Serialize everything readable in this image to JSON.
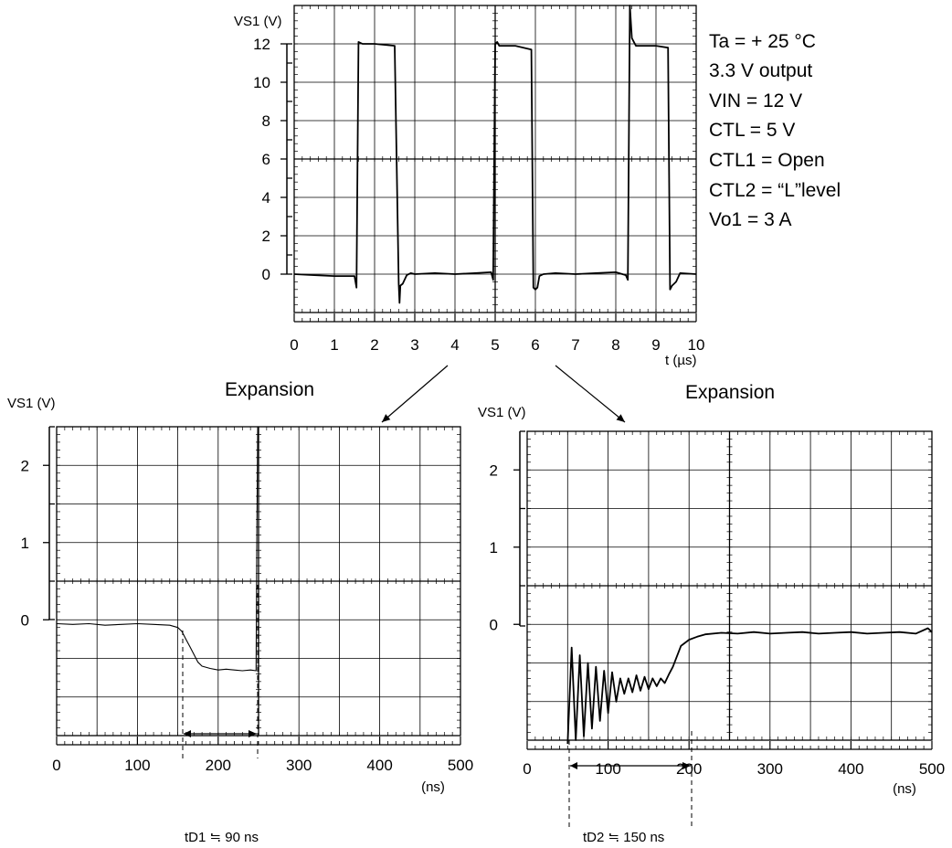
{
  "top_conditions": [
    "Ta = + 25 °C",
    "3.3 V output",
    "VIN = 12 V",
    "CTL = 5 V",
    "CTL1 = Open",
    "CTL2 = “L”level",
    "Vo1 = 3 A"
  ],
  "expansion_left": "Expansion",
  "expansion_right": "Expansion",
  "td1_label": "tD1 ≒ 90 ns",
  "td2_label": "tD2 ≒ 150 ns",
  "chart_data": [
    {
      "type": "line",
      "ylabel": "VS1 (V)",
      "xlabel": "t (µs)",
      "xlim": [
        0,
        10
      ],
      "ylim": [
        -2,
        14
      ],
      "x_ticks": [
        0,
        1,
        2,
        3,
        4,
        5,
        6,
        7,
        8,
        9,
        10
      ],
      "y_ticks": [
        0,
        2,
        4,
        6,
        8,
        10,
        12
      ],
      "series": [
        {
          "x": [
            0,
            0.5,
            1,
            1.5,
            1.55,
            1.6,
            1.7,
            2,
            2.5,
            2.6,
            2.62,
            2.64,
            2.7,
            2.8,
            2.9,
            3,
            3.5,
            4,
            4.5,
            4.9,
            4.95,
            5.0,
            5.05,
            5.1,
            5.5,
            5.9,
            5.95,
            6.0,
            6.05,
            6.1,
            6.2,
            6.5,
            7,
            7.5,
            8,
            8.25,
            8.3,
            8.35,
            8.4,
            8.45,
            8.5,
            9,
            9.3,
            9.35,
            9.4,
            9.5,
            9.6,
            10
          ],
          "y": [
            0,
            -0.05,
            -0.1,
            -0.1,
            -0.7,
            12.1,
            12.0,
            12.0,
            11.9,
            -0.5,
            -1.5,
            -0.6,
            -0.5,
            -0.05,
            0.05,
            0,
            0.05,
            0,
            0.05,
            0.1,
            -0.3,
            12.0,
            12.1,
            11.9,
            11.9,
            11.7,
            -0.7,
            -0.8,
            -0.7,
            -0.1,
            0,
            0.05,
            0,
            0.05,
            0.1,
            -0.05,
            -0.3,
            14.0,
            12.3,
            12.1,
            11.9,
            11.9,
            11.8,
            -0.8,
            -0.6,
            -0.4,
            0.05,
            0
          ]
        }
      ]
    },
    {
      "type": "line",
      "ylabel": "VS1 (V)",
      "xlabel": "(ns)",
      "xlim": [
        0,
        500
      ],
      "ylim": [
        -1.5,
        2.5
      ],
      "x_ticks": [
        0,
        100,
        200,
        300,
        400,
        500
      ],
      "y_ticks": [
        0,
        1,
        2
      ],
      "series": [
        {
          "x": [
            0,
            20,
            40,
            60,
            80,
            100,
            120,
            140,
            150,
            155,
            160,
            165,
            170,
            175,
            180,
            190,
            200,
            210,
            220,
            230,
            240,
            247,
            248,
            249
          ],
          "y": [
            -0.05,
            -0.06,
            -0.05,
            -0.07,
            -0.06,
            -0.05,
            -0.06,
            -0.07,
            -0.1,
            -0.15,
            -0.25,
            -0.35,
            -0.45,
            -0.55,
            -0.6,
            -0.63,
            -0.65,
            -0.64,
            -0.65,
            -0.66,
            -0.65,
            -0.66,
            1.2,
            2.5
          ]
        }
      ]
    },
    {
      "type": "line",
      "ylabel": "VS1 (V)",
      "xlabel": "(ns)",
      "xlim": [
        0,
        500
      ],
      "ylim": [
        -1.5,
        2.5
      ],
      "x_ticks": [
        0,
        100,
        200,
        300,
        400,
        500
      ],
      "y_ticks": [
        0,
        1,
        2
      ],
      "series": [
        {
          "x": [
            50,
            55,
            60,
            65,
            70,
            75,
            80,
            85,
            90,
            95,
            100,
            105,
            110,
            115,
            120,
            125,
            130,
            135,
            140,
            145,
            150,
            155,
            160,
            165,
            170,
            175,
            180,
            190,
            200,
            210,
            220,
            240,
            260,
            280,
            300,
            320,
            340,
            360,
            380,
            400,
            420,
            440,
            460,
            480,
            495,
            500
          ],
          "y": [
            -1.78,
            -0.3,
            -1.5,
            -0.4,
            -1.45,
            -0.5,
            -1.35,
            -0.55,
            -1.25,
            -0.6,
            -1.15,
            -0.62,
            -1.0,
            -0.7,
            -0.9,
            -0.7,
            -0.88,
            -0.66,
            -0.86,
            -0.68,
            -0.84,
            -0.7,
            -0.8,
            -0.7,
            -0.76,
            -0.65,
            -0.55,
            -0.28,
            -0.2,
            -0.16,
            -0.13,
            -0.11,
            -0.12,
            -0.1,
            -0.12,
            -0.11,
            -0.1,
            -0.12,
            -0.11,
            -0.1,
            -0.12,
            -0.11,
            -0.1,
            -0.12,
            -0.05,
            -0.1
          ]
        }
      ]
    }
  ]
}
